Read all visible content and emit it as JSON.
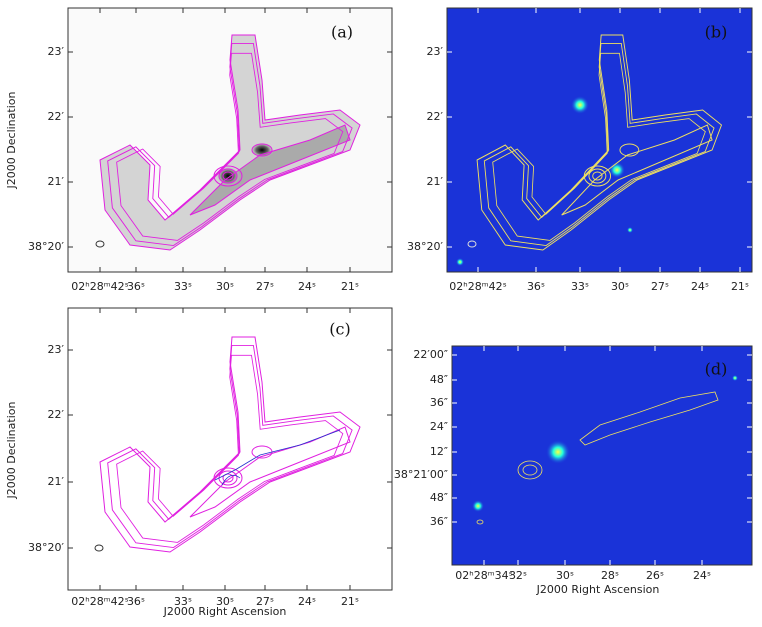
{
  "panels": [
    {
      "label": "(a)",
      "y_axis_label": "J2000 Declination",
      "y_ticks": [
        "23′",
        "22′",
        "21′",
        "38°20′"
      ],
      "x_ticks": [
        "02ʰ28ᵐ42ˢ",
        "36ˢ",
        "33ˢ",
        "30ˢ",
        "27ˢ",
        "24ˢ",
        "21ˢ"
      ]
    },
    {
      "label": "(b)",
      "y_ticks": [
        "23′",
        "22′",
        "21′",
        "38°20′"
      ],
      "x_ticks": [
        "02ʰ28ᵐ42ˢ",
        "36ˢ",
        "33ˢ",
        "30ˢ",
        "27ˢ",
        "24ˢ",
        "21ˢ"
      ]
    },
    {
      "label": "(c)",
      "y_axis_label": "J2000 Declination",
      "x_axis_label": "J2000 Right Ascension",
      "y_ticks": [
        "23′",
        "22′",
        "21′",
        "38°20′"
      ],
      "x_ticks": [
        "02ʰ28ᵐ42ˢ",
        "36ˢ",
        "33ˢ",
        "30ˢ",
        "27ˢ",
        "24ˢ",
        "21ˢ"
      ]
    },
    {
      "label": "(d)",
      "x_axis_label": "J2000 Right Ascension",
      "y_ticks": [
        "22′00″",
        "48″",
        "36″",
        "24″",
        "12″",
        "38°21′00″",
        "48″",
        "36″"
      ],
      "x_ticks": [
        "02ʰ28ᵐ34ˢ",
        "32ˢ",
        "30ˢ",
        "28ˢ",
        "26ˢ",
        "24ˢ"
      ]
    }
  ]
}
